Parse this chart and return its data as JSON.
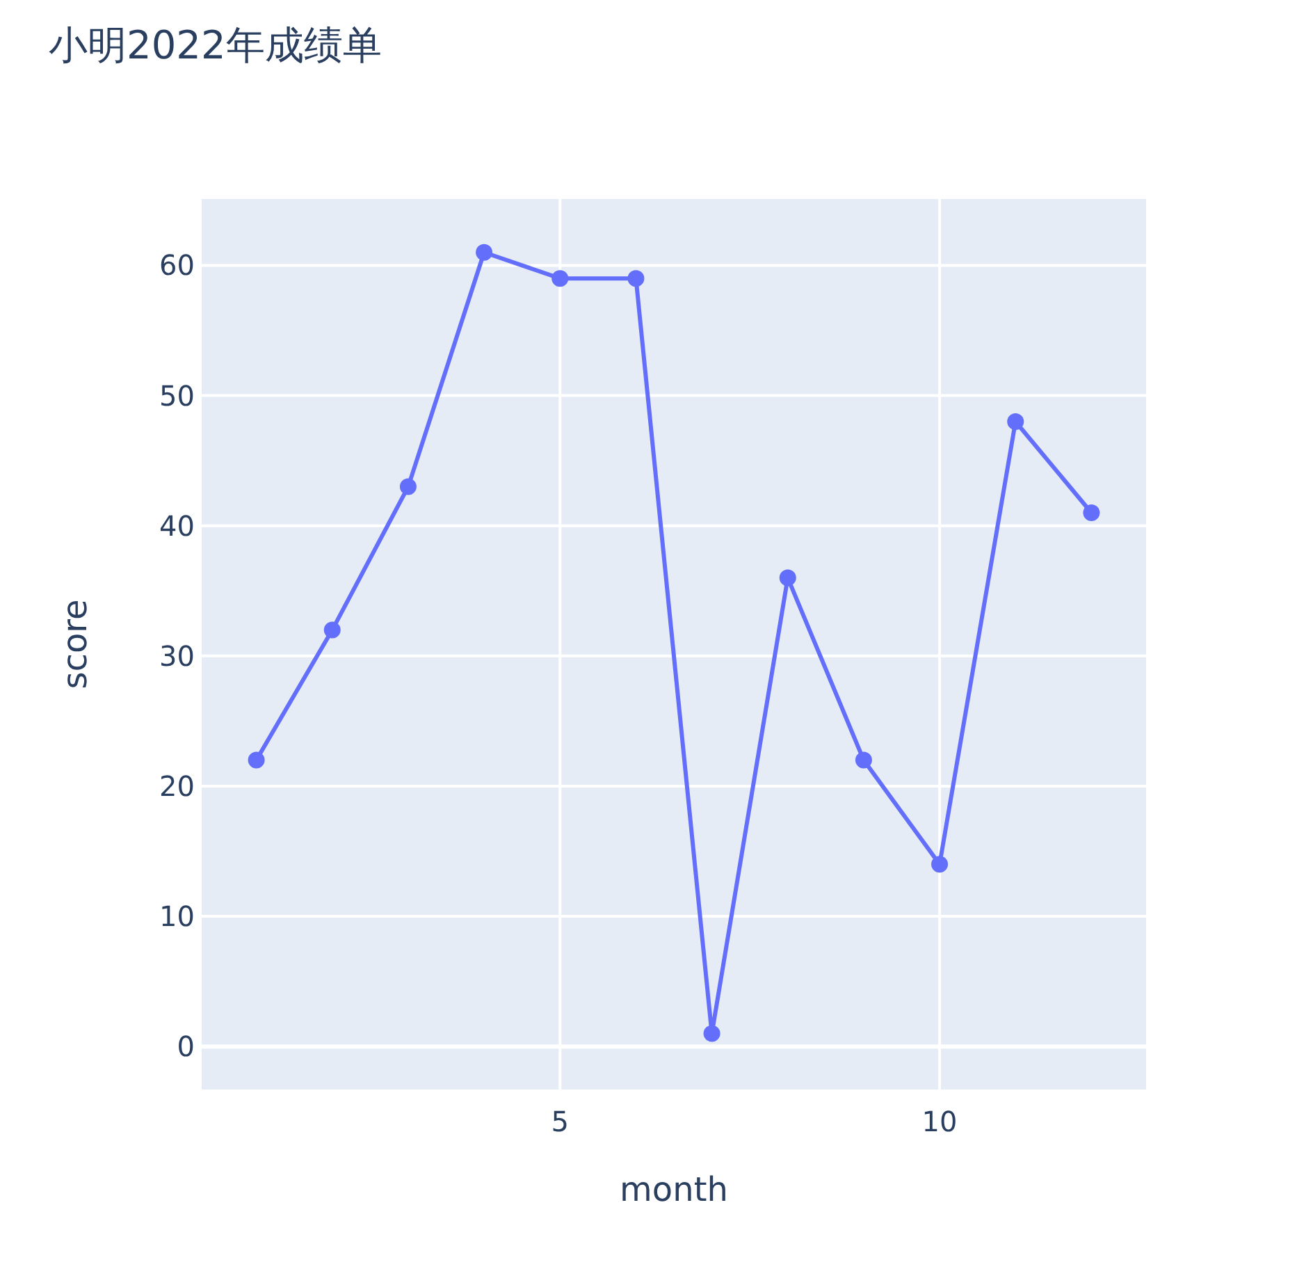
{
  "chart_data": {
    "type": "line",
    "title": "小明2022年成绩单",
    "xlabel": "month",
    "ylabel": "score",
    "x": [
      1,
      2,
      3,
      4,
      5,
      6,
      7,
      8,
      9,
      10,
      11,
      12
    ],
    "series": [
      {
        "color": "#636efa",
        "values": [
          22,
          32,
          43,
          61,
          59,
          59,
          1,
          36,
          22,
          14,
          48,
          41
        ]
      }
    ],
    "xlim": [
      0.28,
      12.72
    ],
    "ylim": [
      -3.3,
      65.1
    ],
    "xticks": [
      5,
      10
    ],
    "yticks": [
      0,
      10,
      20,
      30,
      40,
      50,
      60
    ],
    "grid": true,
    "marker": "circle",
    "line_style": "solid"
  }
}
